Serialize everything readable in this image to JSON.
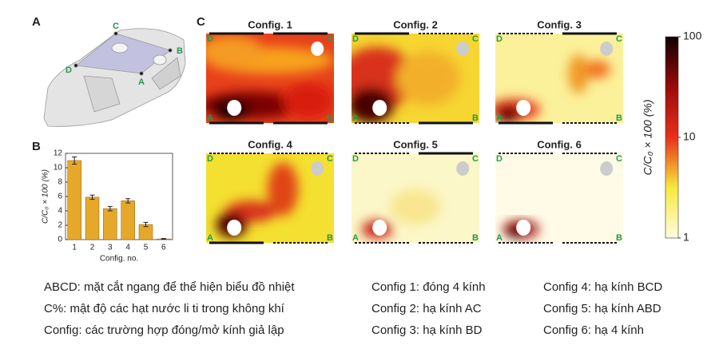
{
  "panel_labels": [
    "A",
    "B",
    "C"
  ],
  "panel_a": {
    "points": [
      "C",
      "B",
      "D",
      "A"
    ]
  },
  "chart_data": {
    "type": "bar",
    "ylabel": "C/C₀ × 100 (%)",
    "xlabel": "Config. no.",
    "categories": [
      "1",
      "2",
      "3",
      "4",
      "5",
      "6"
    ],
    "values": [
      11,
      5.9,
      4.3,
      5.4,
      2.1,
      0.1
    ],
    "errors": [
      0.5,
      0.3,
      0.3,
      0.3,
      0.3,
      0.05
    ],
    "color": "#e6a82a",
    "ylim": [
      0,
      12
    ],
    "yticks": [
      0,
      2,
      4,
      6,
      8,
      10,
      12
    ]
  },
  "heatmaps": {
    "configs": [
      {
        "title": "Config. 1",
        "corners": [
          "D",
          "C",
          "A",
          "B"
        ]
      },
      {
        "title": "Config. 2",
        "corners": [
          "D",
          "C",
          "A",
          "B"
        ]
      },
      {
        "title": "Config. 3",
        "corners": [
          "D",
          "C",
          "A",
          "B"
        ]
      },
      {
        "title": "Config. 4",
        "corners": [
          "D",
          "C",
          "A",
          "B"
        ]
      },
      {
        "title": "Config. 5",
        "corners": [
          "D",
          "C",
          "A",
          "B"
        ]
      },
      {
        "title": "Config. 6",
        "corners": [
          "D",
          "C",
          "A",
          "B"
        ]
      }
    ],
    "colorbar": {
      "label": "C/C₀ × 100 (%)",
      "lim": [
        1,
        100
      ],
      "ticks": [
        1,
        10,
        100
      ],
      "log": true
    }
  },
  "legend": {
    "columns": [
      [
        "ABCD: mặt cắt ngang để thể hiện biểu đồ nhiệt",
        "C%: mật độ các hạt nước li ti trong không khí",
        "Config: các trường hợp đóng/mở kính giả lập"
      ],
      [
        "Config 1: đóng 4 kính",
        "Config 2: hạ kính AC",
        "Config 3: hạ kính BD"
      ],
      [
        "Config 4: hạ kính BCD",
        "Config 5: hạ kính ABD",
        "Config 6: hạ 4 kính"
      ]
    ]
  }
}
